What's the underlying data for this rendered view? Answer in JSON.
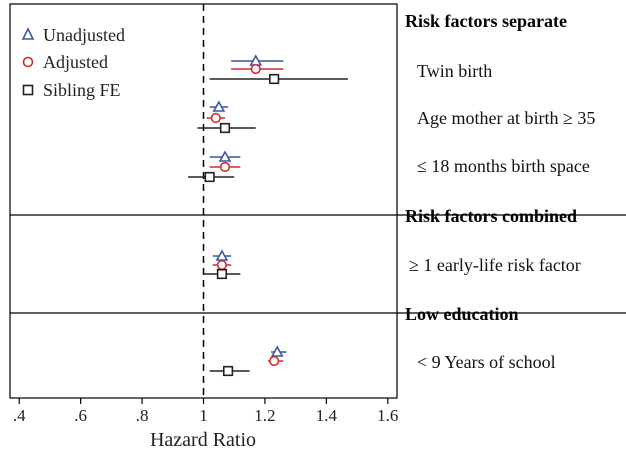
{
  "chart_data": {
    "type": "forest",
    "xlabel": "Hazard Ratio",
    "xlim": [
      0.37,
      1.63
    ],
    "reference_line": 1,
    "x_ticks": [
      {
        "value": 0.4,
        "label": ".4"
      },
      {
        "value": 0.6,
        "label": ".6"
      },
      {
        "value": 0.8,
        "label": ".8"
      },
      {
        "value": 1.0,
        "label": "1"
      },
      {
        "value": 1.2,
        "label": "1.2"
      },
      {
        "value": 1.4,
        "label": "1.4"
      },
      {
        "value": 1.6,
        "label": "1.6"
      }
    ],
    "legend": {
      "placement": "top-left",
      "entries": [
        {
          "key": "unadjusted",
          "label": "Unadjusted",
          "color": "#3a57a8",
          "marker": "triangle"
        },
        {
          "key": "adjusted",
          "label": "Adjusted",
          "color": "#d42a2a",
          "marker": "circle"
        },
        {
          "key": "sibling",
          "label": "Sibling FE",
          "color": "#222222",
          "marker": "square"
        }
      ]
    },
    "sections": [
      {
        "heading": "Risk factors separate",
        "rows": [
          {
            "label": "Twin birth",
            "estimates": {
              "unadjusted": {
                "hr": 1.17,
                "lo": 1.09,
                "hi": 1.26
              },
              "adjusted": {
                "hr": 1.17,
                "lo": 1.09,
                "hi": 1.26
              },
              "sibling": {
                "hr": 1.23,
                "lo": 1.02,
                "hi": 1.47
              }
            }
          },
          {
            "label": "Age mother at birth ≥ 35",
            "estimates": {
              "unadjusted": {
                "hr": 1.05,
                "lo": 1.02,
                "hi": 1.08
              },
              "adjusted": {
                "hr": 1.04,
                "lo": 1.01,
                "hi": 1.07
              },
              "sibling": {
                "hr": 1.07,
                "lo": 0.98,
                "hi": 1.17
              }
            }
          },
          {
            "label": "≤ 18 months birth space",
            "estimates": {
              "unadjusted": {
                "hr": 1.07,
                "lo": 1.02,
                "hi": 1.12
              },
              "adjusted": {
                "hr": 1.07,
                "lo": 1.02,
                "hi": 1.12
              },
              "sibling": {
                "hr": 1.02,
                "lo": 0.95,
                "hi": 1.1
              }
            }
          }
        ]
      },
      {
        "heading": "Risk factors combined",
        "rows": [
          {
            "label": "≥ 1 early-life risk factor",
            "estimates": {
              "unadjusted": {
                "hr": 1.06,
                "lo": 1.03,
                "hi": 1.09
              },
              "adjusted": {
                "hr": 1.06,
                "lo": 1.03,
                "hi": 1.09
              },
              "sibling": {
                "hr": 1.06,
                "lo": 1.0,
                "hi": 1.12
              }
            }
          }
        ]
      },
      {
        "heading": "Low education",
        "rows": [
          {
            "label": "< 9 Years of school",
            "estimates": {
              "unadjusted": {
                "hr": 1.24,
                "lo": 1.22,
                "hi": 1.27
              },
              "adjusted": {
                "hr": 1.23,
                "lo": 1.21,
                "hi": 1.26
              },
              "sibling": {
                "hr": 1.08,
                "lo": 1.02,
                "hi": 1.15
              }
            }
          }
        ]
      }
    ]
  }
}
